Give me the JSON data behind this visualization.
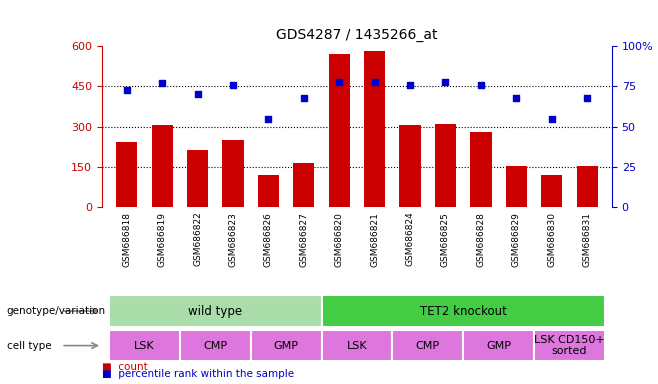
{
  "title": "GDS4287 / 1435266_at",
  "samples": [
    "GSM686818",
    "GSM686819",
    "GSM686822",
    "GSM686823",
    "GSM686826",
    "GSM686827",
    "GSM686820",
    "GSM686821",
    "GSM686824",
    "GSM686825",
    "GSM686828",
    "GSM686829",
    "GSM686830",
    "GSM686831"
  ],
  "counts": [
    245,
    305,
    215,
    250,
    120,
    165,
    570,
    580,
    305,
    310,
    280,
    155,
    120,
    155
  ],
  "percentile_ranks": [
    73,
    77,
    70,
    76,
    55,
    68,
    78,
    78,
    76,
    78,
    76,
    68,
    55,
    68
  ],
  "bar_color": "#cc0000",
  "dot_color": "#0000cc",
  "ylim_left": [
    0,
    600
  ],
  "ylim_right": [
    0,
    100
  ],
  "yticks_left": [
    0,
    150,
    300,
    450,
    600
  ],
  "yticks_right": [
    0,
    25,
    50,
    75,
    100
  ],
  "ytick_labels_left": [
    "0",
    "150",
    "300",
    "450",
    "600"
  ],
  "ytick_labels_right": [
    "0",
    "25",
    "50",
    "75",
    "100%"
  ],
  "hlines": [
    150,
    300,
    450
  ],
  "genotype_groups": [
    {
      "label": "wild type",
      "start": 0,
      "end": 6,
      "color": "#aaddaa"
    },
    {
      "label": "TET2 knockout",
      "start": 6,
      "end": 14,
      "color": "#44cc44"
    }
  ],
  "cell_type_groups": [
    {
      "label": "LSK",
      "start": 0,
      "end": 2,
      "color": "#dd77dd"
    },
    {
      "label": "CMP",
      "start": 2,
      "end": 4,
      "color": "#dd77dd"
    },
    {
      "label": "GMP",
      "start": 4,
      "end": 6,
      "color": "#dd77dd"
    },
    {
      "label": "LSK",
      "start": 6,
      "end": 8,
      "color": "#dd77dd"
    },
    {
      "label": "CMP",
      "start": 8,
      "end": 10,
      "color": "#dd77dd"
    },
    {
      "label": "GMP",
      "start": 10,
      "end": 12,
      "color": "#dd77dd"
    },
    {
      "label": "LSK CD150+\nsorted",
      "start": 12,
      "end": 14,
      "color": "#dd77dd"
    }
  ],
  "background_color": "#ffffff",
  "xtick_bg_color": "#cccccc",
  "left_label_color": "#555555"
}
